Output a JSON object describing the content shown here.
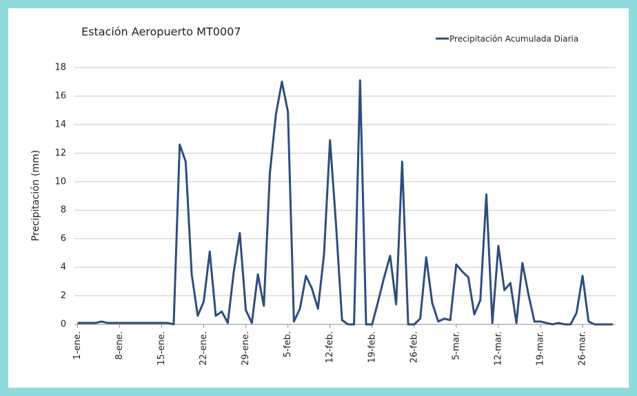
{
  "chart_data": {
    "type": "line",
    "title": "Estación  Aeropuerto MT0007",
    "y_label": "Precipitación (mm)",
    "categories": [
      "1-ene.",
      null,
      null,
      null,
      null,
      null,
      null,
      "8-ene.",
      null,
      null,
      null,
      null,
      null,
      null,
      "15-ene.",
      null,
      null,
      null,
      null,
      null,
      null,
      "22-ene.",
      null,
      null,
      null,
      null,
      null,
      null,
      "29-ene.",
      null,
      null,
      null,
      null,
      null,
      null,
      "5-feb.",
      null,
      null,
      null,
      null,
      null,
      null,
      "12-feb.",
      null,
      null,
      null,
      null,
      null,
      null,
      "19-feb.",
      null,
      null,
      null,
      null,
      null,
      null,
      "26-feb.",
      null,
      null,
      null,
      null,
      null,
      null,
      "5-mar.",
      null,
      null,
      null,
      null,
      null,
      null,
      "12-mar.",
      null,
      null,
      null,
      null,
      null,
      null,
      "19-mar.",
      null,
      null,
      null,
      null,
      null,
      null,
      "26-mar.",
      null,
      null,
      null,
      null,
      null
    ],
    "series": [
      {
        "name": "Precipitación Acumulada Diaria",
        "color": "#2e4d7b",
        "values": [
          0.1,
          0.1,
          0.1,
          0.1,
          0.2,
          0.1,
          0.1,
          0.1,
          0.1,
          0.1,
          0.1,
          0.1,
          0.1,
          0.1,
          0.1,
          0.1,
          0,
          12.6,
          11.4,
          3.5,
          0.6,
          1.6,
          5.1,
          0.6,
          0.9,
          0.1,
          3.7,
          6.4,
          1.0,
          0.1,
          3.5,
          1.3,
          10.6,
          14.7,
          17.0,
          14.9,
          0.2,
          1.1,
          3.4,
          2.5,
          1.1,
          4.9,
          12.9,
          7.0,
          0.3,
          0,
          0,
          17.1,
          0,
          0,
          1.6,
          3.3,
          4.8,
          1.4,
          11.4,
          0,
          0,
          0.4,
          4.7,
          1.5,
          0.2,
          0.4,
          0.3,
          4.2,
          3.7,
          3.3,
          0.7,
          1.7,
          9.1,
          0.1,
          5.5,
          2.4,
          2.9,
          0.1,
          4.3,
          2.1,
          0.2,
          0.2,
          0.1,
          0,
          0.1,
          0,
          0,
          0.8,
          3.4,
          0.2,
          0,
          0,
          0,
          0
        ]
      }
    ],
    "ylim": [
      0,
      18
    ],
    "yticks": [
      0,
      2,
      4,
      6,
      8,
      10,
      12,
      14,
      16,
      18
    ],
    "grid": true,
    "legend": "top-right"
  }
}
